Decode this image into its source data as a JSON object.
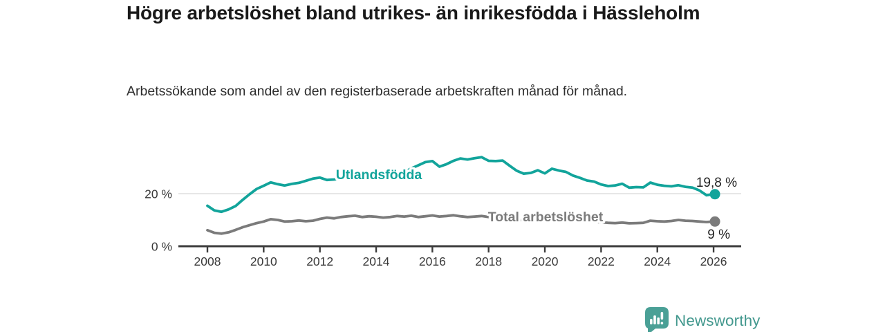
{
  "header": {
    "title": "Högre arbetslöshet bland utrikes- än inrikesfödda i Hässleholm",
    "subtitle": "Arbetssökande som andel av den registerbaserade arbetskraften månad för månad."
  },
  "chart_data": {
    "type": "line",
    "title": "Högre arbetslöshet bland utrikes- än inrikesfödda i Hässleholm",
    "subtitle": "Arbetssökande som andel av den registerbaserade arbetskraften månad för månad.",
    "xlabel": "",
    "ylabel": "",
    "xlim": [
      2008,
      2026.1
    ],
    "ylim": [
      0,
      38
    ],
    "x_tick_labels": [
      "2008",
      "2010",
      "2012",
      "2014",
      "2016",
      "2018",
      "2020",
      "2022",
      "2024",
      "2026"
    ],
    "x_tick_values": [
      2008,
      2010,
      2012,
      2014,
      2016,
      2018,
      2020,
      2022,
      2024,
      2026
    ],
    "y_ticks": [
      {
        "value": 0,
        "label": "0 %"
      },
      {
        "value": 20,
        "label": "20 %"
      }
    ],
    "grid": "horizontal line at 20 % only",
    "legend": "inline labels on lines",
    "x": [
      2008,
      2008.25,
      2008.5,
      2008.75,
      2009,
      2009.25,
      2009.5,
      2009.75,
      2010,
      2010.25,
      2010.5,
      2010.75,
      2011,
      2011.25,
      2011.5,
      2011.75,
      2012,
      2012.25,
      2012.5,
      2012.75,
      2013,
      2013.25,
      2013.5,
      2013.75,
      2014,
      2014.25,
      2014.5,
      2014.75,
      2015,
      2015.25,
      2015.5,
      2015.75,
      2016,
      2016.25,
      2016.5,
      2016.75,
      2017,
      2017.25,
      2017.5,
      2017.75,
      2018,
      2018.25,
      2018.5,
      2018.75,
      2019,
      2019.25,
      2019.5,
      2019.75,
      2020,
      2020.25,
      2020.5,
      2020.75,
      2021,
      2021.25,
      2021.5,
      2021.75,
      2022,
      2022.25,
      2022.5,
      2022.75,
      2023,
      2023.25,
      2023.5,
      2023.75,
      2024,
      2024.25,
      2024.5,
      2024.75,
      2025,
      2025.25,
      2025.5,
      2025.75,
      2026
    ],
    "series": [
      {
        "name": "Utlandsfödda",
        "color": "#12a49b",
        "end_label": "19,8 %",
        "end_value": 19.8,
        "values": [
          15.4,
          13.6,
          13.1,
          14.0,
          15.3,
          17.6,
          19.8,
          21.8,
          23.0,
          24.3,
          23.6,
          23.1,
          23.7,
          24.1,
          24.9,
          25.7,
          26.1,
          25.2,
          25.4,
          25.9,
          26.3,
          26.6,
          26.2,
          26.9,
          27.3,
          27.0,
          27.5,
          27.9,
          28.2,
          29.6,
          30.8,
          32.0,
          32.4,
          30.3,
          31.2,
          32.5,
          33.4,
          33.0,
          33.5,
          33.9,
          32.5,
          32.4,
          32.6,
          30.6,
          28.7,
          27.6,
          27.9,
          28.9,
          27.7,
          29.5,
          28.8,
          28.3,
          26.9,
          26.0,
          25.0,
          24.6,
          23.5,
          22.9,
          23.1,
          23.8,
          22.3,
          22.5,
          22.4,
          24.2,
          23.4,
          23.0,
          22.8,
          23.2,
          22.6,
          22.3,
          21.2,
          19.4,
          19.8
        ]
      },
      {
        "name": "Total arbetslöshet",
        "color": "#7b7b7b",
        "end_label": "9 %",
        "end_value": 9.4,
        "values": [
          6.1,
          5.1,
          4.8,
          5.3,
          6.2,
          7.2,
          8.0,
          8.8,
          9.4,
          10.3,
          10.0,
          9.4,
          9.5,
          9.8,
          9.5,
          9.7,
          10.4,
          10.9,
          10.6,
          11.1,
          11.4,
          11.6,
          11.1,
          11.4,
          11.2,
          10.9,
          11.1,
          11.5,
          11.3,
          11.6,
          11.1,
          11.4,
          11.7,
          11.3,
          11.5,
          11.8,
          11.4,
          11.1,
          11.3,
          11.5,
          11.1,
          10.9,
          10.6,
          10.4,
          10.1,
          9.9,
          10.0,
          10.3,
          10.1,
          11.1,
          10.9,
          10.6,
          10.3,
          10.0,
          9.6,
          9.4,
          9.1,
          8.9,
          8.8,
          9.0,
          8.7,
          8.8,
          8.9,
          9.7,
          9.5,
          9.4,
          9.6,
          10.0,
          9.7,
          9.6,
          9.4,
          9.2,
          9.4
        ]
      }
    ]
  },
  "colors": {
    "accent_teal": "#12a49b",
    "series_gray": "#7b7b7b",
    "axis": "#3c3c3c",
    "gridline": "#d8d8d8",
    "tick_text": "#3a3a3a",
    "value_label_text": "#222222",
    "brand_teal": "#43988e"
  },
  "footer": {
    "brand": "Newsworthy",
    "logo_icon": "bar-chart-speech-bubble-icon"
  }
}
